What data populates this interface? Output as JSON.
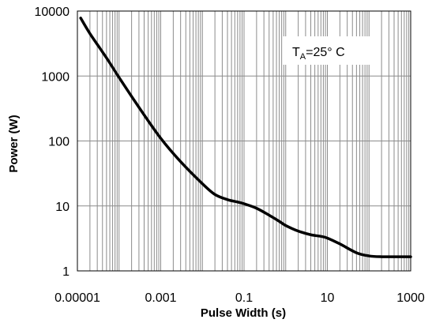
{
  "chart_data": {
    "type": "line",
    "xscale": "log",
    "yscale": "log",
    "xlim": [
      1e-05,
      1000
    ],
    "ylim": [
      1,
      10000
    ],
    "xlabel": "Pulse Width (s)",
    "ylabel": "Power (W)",
    "x_tick_labels": [
      "0.00001",
      "0.001",
      "0.1",
      "10",
      "1000"
    ],
    "y_tick_labels": [
      "1",
      "10",
      "100",
      "1000",
      "10000"
    ],
    "grid": true,
    "annotation": {
      "main": "T",
      "sub": "A",
      "rest": "=25° C"
    },
    "series": [
      {
        "color": "#000000",
        "x": [
          1.2e-05,
          2e-05,
          5e-05,
          0.0001,
          0.0003,
          0.001,
          0.003,
          0.01,
          0.02,
          0.04,
          0.07,
          0.1,
          0.2,
          0.4,
          0.7,
          1,
          2,
          4,
          7,
          10,
          20,
          50,
          100,
          200,
          500,
          1000
        ],
        "values": [
          7800,
          4500,
          1900,
          950,
          330,
          110,
          48,
          22,
          15,
          12.5,
          11.5,
          10.8,
          9.2,
          7.2,
          5.8,
          5.0,
          4.1,
          3.6,
          3.4,
          3.2,
          2.6,
          1.9,
          1.7,
          1.65,
          1.65,
          1.65
        ]
      }
    ]
  }
}
